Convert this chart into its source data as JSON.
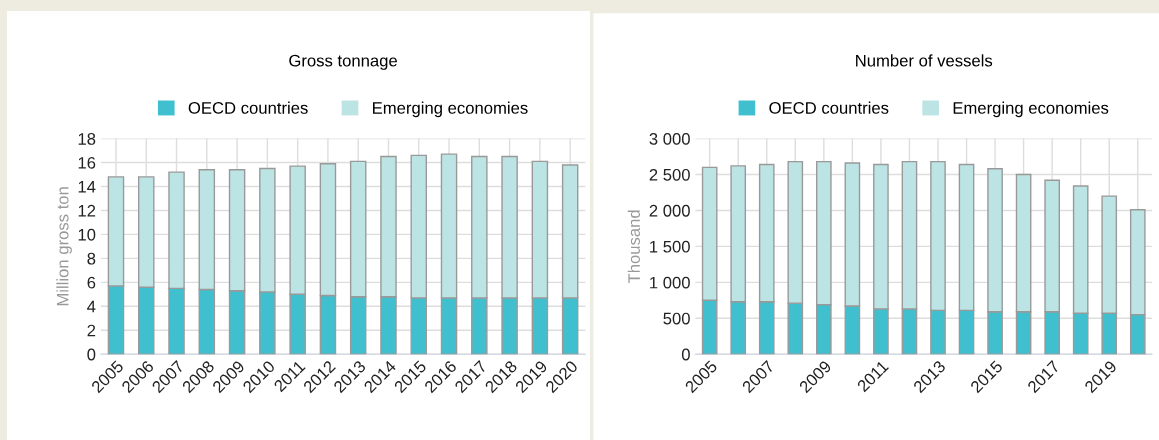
{
  "chart_data": [
    {
      "type": "bar",
      "title": "Gross tonnage",
      "ylabel": "Million gross ton",
      "stacked": true,
      "grid": true,
      "legend": "top",
      "categories": [
        "2005",
        "2006",
        "2007",
        "2008",
        "2009",
        "2010",
        "2011",
        "2012",
        "2013",
        "2014",
        "2015",
        "2016",
        "2017",
        "2018",
        "2019",
        "2020"
      ],
      "series": [
        {
          "name": "OECD countries",
          "color": "#40c0cf",
          "values": [
            5.7,
            5.6,
            5.5,
            5.4,
            5.3,
            5.2,
            5.0,
            4.9,
            4.8,
            4.8,
            4.7,
            4.7,
            4.7,
            4.7,
            4.7,
            4.7
          ]
        },
        {
          "name": "Emerging economies",
          "color": "#bce4e5",
          "values": [
            9.1,
            9.2,
            9.7,
            10.0,
            10.1,
            10.3,
            10.7,
            11.0,
            11.3,
            11.7,
            11.9,
            12.0,
            11.8,
            11.8,
            11.4,
            11.1
          ]
        }
      ],
      "ylim": [
        0,
        18
      ],
      "yticks": [
        0,
        2,
        4,
        6,
        8,
        10,
        12,
        14,
        16,
        18
      ]
    },
    {
      "type": "bar",
      "title": "Number of vessels",
      "ylabel": "Thousand",
      "stacked": true,
      "grid": true,
      "legend": "top",
      "categories": [
        "2005",
        null,
        "2007",
        null,
        "2009",
        null,
        "2011",
        null,
        "2013",
        null,
        "2015",
        null,
        "2017",
        null,
        "2019",
        null
      ],
      "series": [
        {
          "name": "OECD countries",
          "color": "#40c0cf",
          "values": [
            750,
            730,
            730,
            710,
            690,
            670,
            630,
            630,
            610,
            610,
            590,
            590,
            590,
            570,
            570,
            550
          ]
        },
        {
          "name": "Emerging economies",
          "color": "#bce4e5",
          "values": [
            1850,
            1890,
            1910,
            1970,
            1990,
            1990,
            2010,
            2050,
            2070,
            2030,
            1990,
            1910,
            1830,
            1770,
            1630,
            1460
          ]
        }
      ],
      "ylim": [
        0,
        3000
      ],
      "yticks": [
        0,
        {
          "value": 500,
          "label": "500"
        },
        {
          "value": 1000,
          "label": "1 000"
        },
        {
          "value": 1500,
          "label": "1 500"
        },
        {
          "value": 2000,
          "label": "2 000"
        },
        {
          "value": 2500,
          "label": "2 500"
        },
        {
          "value": 3000,
          "label": "3 000"
        }
      ]
    }
  ]
}
